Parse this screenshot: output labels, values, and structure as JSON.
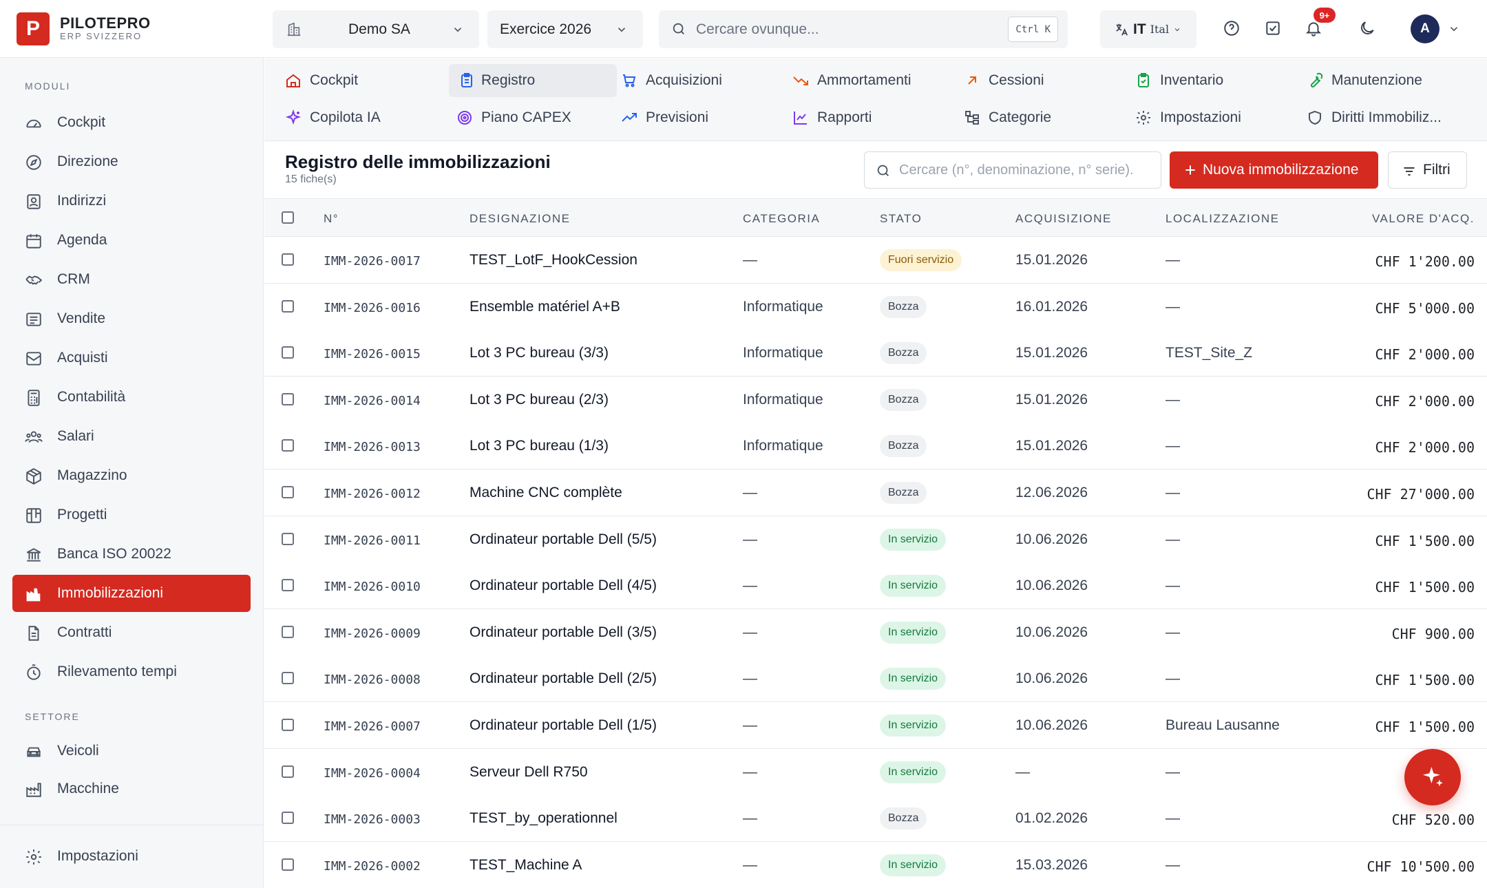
{
  "brand": {
    "logo_letter": "P",
    "name": "PILOTEPRO",
    "subtitle": "ERP SVIZZERO",
    "accent": "#d42a20"
  },
  "topbar": {
    "company": "Demo SA",
    "fiscal_year": "Exercice 2026",
    "search_placeholder": "Cercare ovunque...",
    "search_shortcut": "Ctrl K",
    "lang_code": "IT",
    "lang_name": "Ital",
    "notifications_badge": "9+",
    "avatar_initial": "A",
    "icons": [
      "building-icon",
      "help-icon",
      "tasks-icon",
      "bell-icon",
      "moon-icon"
    ]
  },
  "sidebar": {
    "section_moduli": "MODULI",
    "section_settore": "SETTORE",
    "items": [
      {
        "label": "Cockpit",
        "icon": "gauge-icon"
      },
      {
        "label": "Direzione",
        "icon": "compass-icon"
      },
      {
        "label": "Indirizzi",
        "icon": "contacts-icon"
      },
      {
        "label": "Agenda",
        "icon": "calendar-icon"
      },
      {
        "label": "CRM",
        "icon": "handshake-icon"
      },
      {
        "label": "Vendite",
        "icon": "receipt-icon"
      },
      {
        "label": "Acquisti",
        "icon": "inbox-icon"
      },
      {
        "label": "Contabilità",
        "icon": "calculator-icon"
      },
      {
        "label": "Salari",
        "icon": "users-icon"
      },
      {
        "label": "Magazzino",
        "icon": "package-icon"
      },
      {
        "label": "Progetti",
        "icon": "kanban-icon"
      },
      {
        "label": "Banca ISO 20022",
        "icon": "bank-icon"
      },
      {
        "label": "Immobilizzazioni",
        "icon": "factory-icon",
        "active": true
      },
      {
        "label": "Contratti",
        "icon": "file-icon"
      },
      {
        "label": "Rilevamento tempi",
        "icon": "timer-icon"
      }
    ],
    "settore_items": [
      {
        "label": "Veicoli",
        "icon": "car-icon"
      },
      {
        "label": "Macchine",
        "icon": "machine-icon"
      }
    ],
    "footer": {
      "label": "Impostazioni",
      "icon": "gear-icon"
    }
  },
  "module_tabs": [
    {
      "label": "Cockpit",
      "icon": "home-icon",
      "color": "#d42a20"
    },
    {
      "label": "Registro",
      "icon": "clipboard-icon",
      "color": "#2563eb",
      "active": true
    },
    {
      "label": "Acquisizioni",
      "icon": "cart-icon",
      "color": "#2563eb"
    },
    {
      "label": "Ammortamenti",
      "icon": "trend-down-icon",
      "color": "#ea580c"
    },
    {
      "label": "Cessioni",
      "icon": "arrow-up-right-icon",
      "color": "#ea580c"
    },
    {
      "label": "Inventario",
      "icon": "clipboard-check-icon",
      "color": "#16a34a"
    },
    {
      "label": "Manutenzione",
      "icon": "wrench-icon",
      "color": "#16a34a"
    },
    {
      "label": "Copilota IA",
      "icon": "sparkles-icon",
      "color": "#7c3aed"
    },
    {
      "label": "Piano CAPEX",
      "icon": "target-icon",
      "color": "#7c3aed"
    },
    {
      "label": "Previsioni",
      "icon": "trend-up-icon",
      "color": "#2563eb"
    },
    {
      "label": "Rapporti",
      "icon": "line-chart-icon",
      "color": "#7c3aed"
    },
    {
      "label": "Categorie",
      "icon": "tree-icon",
      "color": "#4b5563"
    },
    {
      "label": "Impostazioni",
      "icon": "gear-icon",
      "color": "#4b5563"
    },
    {
      "label": "Diritti Immobiliz...",
      "icon": "shield-icon",
      "color": "#4b5563"
    }
  ],
  "register": {
    "title": "Registro delle immobilizzazioni",
    "count": "15 fiche(s)",
    "search_placeholder": "Cercare (n°, denominazione, n° serie).",
    "new_button": "Nuova immobilizzazione",
    "filter_button": "Filtri",
    "columns": [
      "N°",
      "DESIGNAZIONE",
      "CATEGORIA",
      "STATO",
      "ACQUISIZIONE",
      "LOCALIZZAZIONE",
      "VALORE D'ACQ."
    ],
    "status_colors": {
      "fuori": "#fdf2d4",
      "bozza": "#f0f1f3",
      "servizio": "#dcf5e7"
    },
    "rows": [
      {
        "num": "IMM-2026-0017",
        "designazione": "TEST_LotF_HookCession",
        "categoria": "—",
        "stato": "Fuori servizio",
        "stato_kind": "fuori",
        "acquisizione": "15.01.2026",
        "localizzazione": "—",
        "valore": "CHF 1'200.00"
      },
      {
        "num": "IMM-2026-0016",
        "designazione": "Ensemble matériel A+B",
        "categoria": "Informatique",
        "stato": "Bozza",
        "stato_kind": "bozza",
        "acquisizione": "16.01.2026",
        "localizzazione": "—",
        "valore": "CHF 5'000.00"
      },
      {
        "num": "IMM-2026-0015",
        "designazione": "Lot 3 PC bureau (3/3)",
        "categoria": "Informatique",
        "stato": "Bozza",
        "stato_kind": "bozza",
        "acquisizione": "15.01.2026",
        "localizzazione": "TEST_Site_Z",
        "valore": "CHF 2'000.00"
      },
      {
        "num": "IMM-2026-0014",
        "designazione": "Lot 3 PC bureau (2/3)",
        "categoria": "Informatique",
        "stato": "Bozza",
        "stato_kind": "bozza",
        "acquisizione": "15.01.2026",
        "localizzazione": "—",
        "valore": "CHF 2'000.00"
      },
      {
        "num": "IMM-2026-0013",
        "designazione": "Lot 3 PC bureau (1/3)",
        "categoria": "Informatique",
        "stato": "Bozza",
        "stato_kind": "bozza",
        "acquisizione": "15.01.2026",
        "localizzazione": "—",
        "valore": "CHF 2'000.00"
      },
      {
        "num": "IMM-2026-0012",
        "designazione": "Machine CNC complète",
        "categoria": "—",
        "stato": "Bozza",
        "stato_kind": "bozza",
        "acquisizione": "12.06.2026",
        "localizzazione": "—",
        "valore": "CHF 27'000.00"
      },
      {
        "num": "IMM-2026-0011",
        "designazione": "Ordinateur portable Dell (5/5)",
        "categoria": "—",
        "stato": "In servizio",
        "stato_kind": "servizio",
        "acquisizione": "10.06.2026",
        "localizzazione": "—",
        "valore": "CHF 1'500.00"
      },
      {
        "num": "IMM-2026-0010",
        "designazione": "Ordinateur portable Dell (4/5)",
        "categoria": "—",
        "stato": "In servizio",
        "stato_kind": "servizio",
        "acquisizione": "10.06.2026",
        "localizzazione": "—",
        "valore": "CHF 1'500.00"
      },
      {
        "num": "IMM-2026-0009",
        "designazione": "Ordinateur portable Dell (3/5)",
        "categoria": "—",
        "stato": "In servizio",
        "stato_kind": "servizio",
        "acquisizione": "10.06.2026",
        "localizzazione": "—",
        "valore": "CHF 900.00"
      },
      {
        "num": "IMM-2026-0008",
        "designazione": "Ordinateur portable Dell (2/5)",
        "categoria": "—",
        "stato": "In servizio",
        "stato_kind": "servizio",
        "acquisizione": "10.06.2026",
        "localizzazione": "—",
        "valore": "CHF 1'500.00"
      },
      {
        "num": "IMM-2026-0007",
        "designazione": "Ordinateur portable Dell (1/5)",
        "categoria": "—",
        "stato": "In servizio",
        "stato_kind": "servizio",
        "acquisizione": "10.06.2026",
        "localizzazione": "Bureau Lausanne",
        "valore": "CHF 1'500.00"
      },
      {
        "num": "IMM-2026-0004",
        "designazione": "Serveur Dell R750",
        "categoria": "—",
        "stato": "In servizio",
        "stato_kind": "servizio",
        "acquisizione": "—",
        "localizzazione": "—",
        "valore": ""
      },
      {
        "num": "IMM-2026-0003",
        "designazione": "TEST_by_operationnel",
        "categoria": "—",
        "stato": "Bozza",
        "stato_kind": "bozza",
        "acquisizione": "01.02.2026",
        "localizzazione": "—",
        "valore": "CHF 520.00"
      },
      {
        "num": "IMM-2026-0002",
        "designazione": "TEST_Machine A",
        "categoria": "—",
        "stato": "In servizio",
        "stato_kind": "servizio",
        "acquisizione": "15.03.2026",
        "localizzazione": "—",
        "valore": "CHF 10'500.00"
      }
    ]
  },
  "fab": {
    "icon": "sparkles-icon"
  }
}
